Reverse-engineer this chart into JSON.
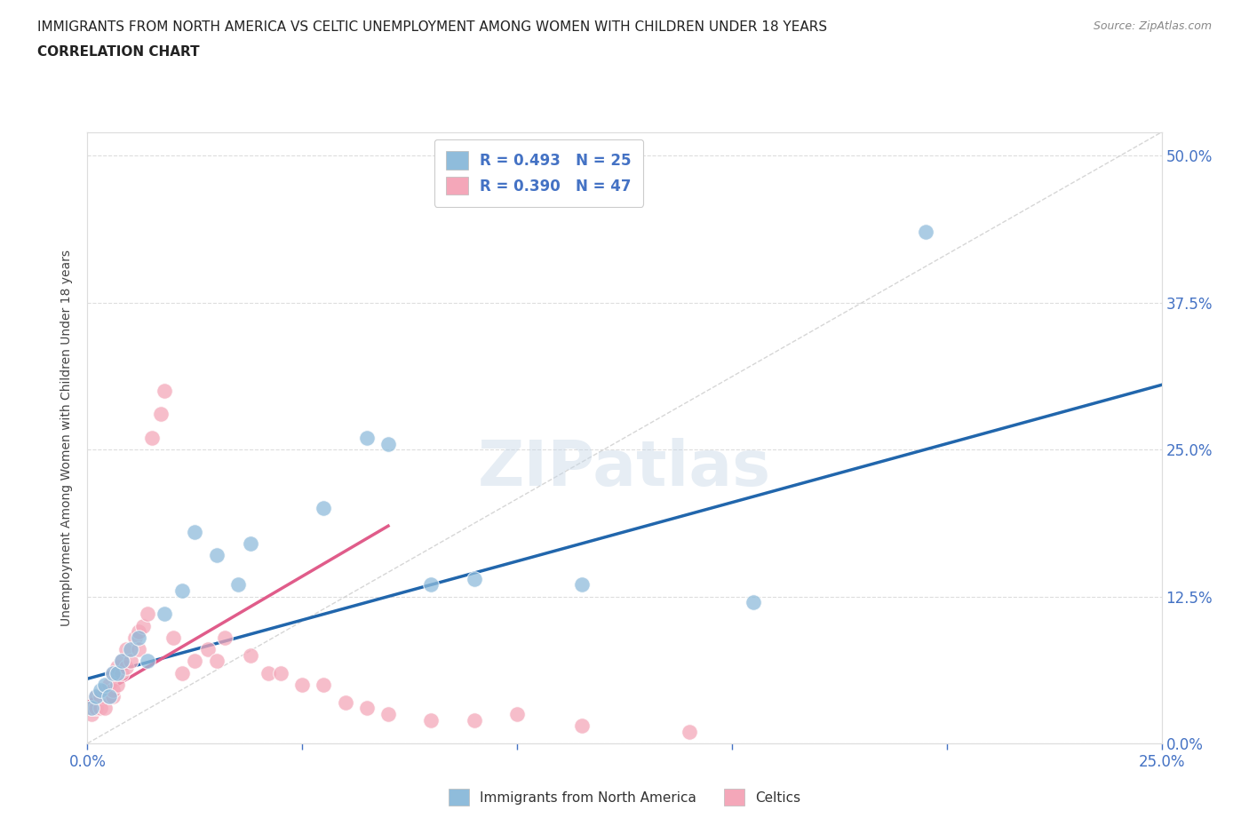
{
  "title_line1": "IMMIGRANTS FROM NORTH AMERICA VS CELTIC UNEMPLOYMENT AMONG WOMEN WITH CHILDREN UNDER 18 YEARS",
  "title_line2": "CORRELATION CHART",
  "source": "Source: ZipAtlas.com",
  "ylabel_label": "Unemployment Among Women with Children Under 18 years",
  "xlim": [
    0.0,
    0.25
  ],
  "ylim": [
    0.0,
    0.52
  ],
  "color_blue": "#8fbcdb",
  "color_pink": "#f4a7b9",
  "color_blue_line": "#2166ac",
  "color_pink_line": "#e05c8a",
  "color_diagonal": "#cccccc",
  "watermark": "ZIPatlas",
  "blue_scatter_x": [
    0.001,
    0.002,
    0.003,
    0.004,
    0.005,
    0.006,
    0.007,
    0.008,
    0.01,
    0.012,
    0.014,
    0.018,
    0.022,
    0.025,
    0.03,
    0.035,
    0.038,
    0.055,
    0.065,
    0.07,
    0.08,
    0.09,
    0.115,
    0.155,
    0.195
  ],
  "blue_scatter_y": [
    0.03,
    0.04,
    0.045,
    0.05,
    0.04,
    0.06,
    0.06,
    0.07,
    0.08,
    0.09,
    0.07,
    0.11,
    0.13,
    0.18,
    0.16,
    0.135,
    0.17,
    0.2,
    0.26,
    0.255,
    0.135,
    0.14,
    0.135,
    0.12,
    0.435
  ],
  "pink_scatter_x": [
    0.001,
    0.001,
    0.002,
    0.002,
    0.003,
    0.003,
    0.004,
    0.004,
    0.005,
    0.005,
    0.006,
    0.006,
    0.006,
    0.007,
    0.007,
    0.008,
    0.008,
    0.009,
    0.009,
    0.01,
    0.011,
    0.012,
    0.012,
    0.013,
    0.014,
    0.015,
    0.017,
    0.018,
    0.02,
    0.022,
    0.025,
    0.028,
    0.03,
    0.032,
    0.038,
    0.042,
    0.045,
    0.05,
    0.055,
    0.06,
    0.065,
    0.07,
    0.08,
    0.09,
    0.1,
    0.115,
    0.14
  ],
  "pink_scatter_y": [
    0.025,
    0.03,
    0.03,
    0.04,
    0.03,
    0.04,
    0.03,
    0.045,
    0.04,
    0.05,
    0.04,
    0.045,
    0.06,
    0.05,
    0.065,
    0.06,
    0.07,
    0.065,
    0.08,
    0.07,
    0.09,
    0.08,
    0.095,
    0.1,
    0.11,
    0.26,
    0.28,
    0.3,
    0.09,
    0.06,
    0.07,
    0.08,
    0.07,
    0.09,
    0.075,
    0.06,
    0.06,
    0.05,
    0.05,
    0.035,
    0.03,
    0.025,
    0.02,
    0.02,
    0.025,
    0.015,
    0.01
  ],
  "title_color": "#222222",
  "tick_color": "#4472c4",
  "background_color": "#ffffff",
  "grid_color": "#dddddd",
  "blue_line_x0": 0.0,
  "blue_line_y0": 0.055,
  "blue_line_x1": 0.25,
  "blue_line_y1": 0.305,
  "pink_line_x0": 0.0,
  "pink_line_y0": 0.035,
  "pink_line_x1": 0.07,
  "pink_line_y1": 0.185
}
